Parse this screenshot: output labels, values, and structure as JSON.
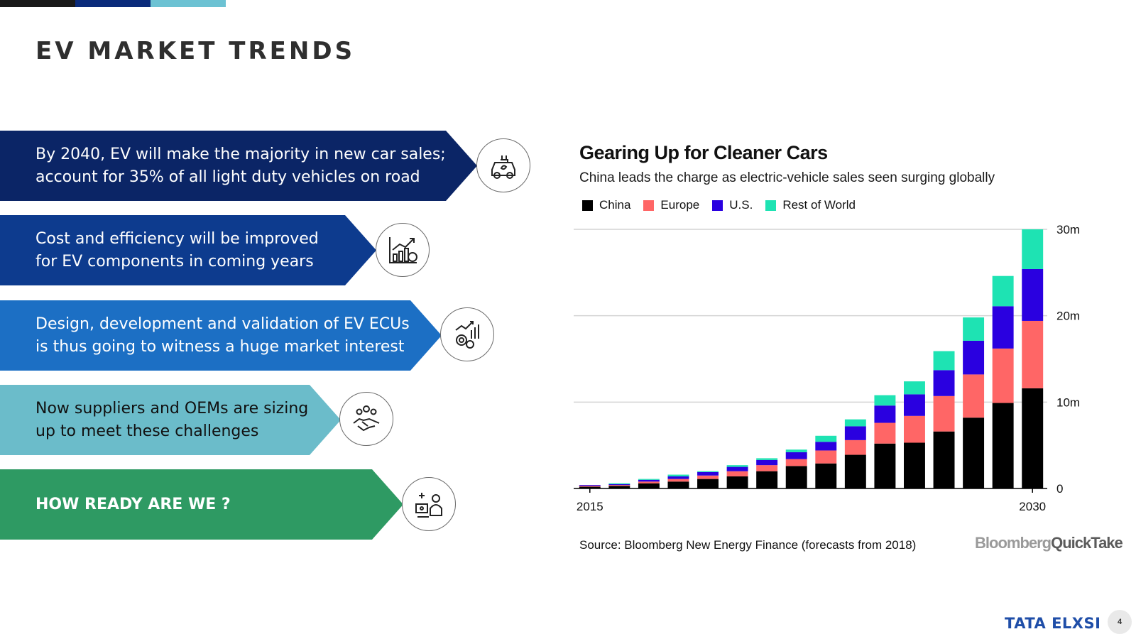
{
  "topbar": {
    "colors": [
      "#1a1a1a",
      "#0a2a7a",
      "#6cc2d3"
    ]
  },
  "slide": {
    "title": "EV MARKET TRENDS",
    "page_number": "4",
    "brand": "TATA ELXSI"
  },
  "banners": [
    {
      "text": "By 2040, EV will make the majority in new car sales;\naccount for 35% of all light duty vehicles on road",
      "color": "#0b2566",
      "icon": "ev-car-charging-icon"
    },
    {
      "text": "Cost and efficiency will be improved\nfor EV components in coming years",
      "color": "#0d3b8e",
      "icon": "cost-growth-chart-icon"
    },
    {
      "text": "Design, development and validation of EV ECUs\nis thus going to witness a huge market interest",
      "color": "#1c6fc4",
      "icon": "gear-growth-icon"
    },
    {
      "text": "Now suppliers and OEMs are sizing\nup to meet these challenges",
      "color": "#6bbcca",
      "icon": "partnership-handshake-icon"
    },
    {
      "text": "HOW READY ARE WE ?",
      "color": "#2e9a63",
      "icon": "engineer-workstation-icon"
    }
  ],
  "chart": {
    "title": "Gearing Up for Cleaner Cars",
    "subtitle": "China leads the charge as electric-vehicle sales seen surging globally",
    "source": "Source: Bloomberg New Energy Finance (forecasts from 2018)",
    "logo_part1": "Bloomberg",
    "logo_part2": "QuickTake"
  },
  "chart_data": {
    "type": "bar",
    "stacked": true,
    "categories": [
      "2015",
      "2016",
      "2017",
      "2018",
      "2019",
      "2020",
      "2021",
      "2022",
      "2023",
      "2024",
      "2025",
      "2026",
      "2027",
      "2028",
      "2029",
      "2030"
    ],
    "x_tick_labels": [
      "2015",
      "2030"
    ],
    "series": [
      {
        "name": "China",
        "color": "#000000",
        "values": [
          0.2,
          0.3,
          0.6,
          0.8,
          1.1,
          1.4,
          2.0,
          2.6,
          2.9,
          3.9,
          5.2,
          5.3,
          6.6,
          8.2,
          9.9,
          11.6
        ]
      },
      {
        "name": "Europe",
        "color": "#ff6666",
        "values": [
          0.1,
          0.1,
          0.2,
          0.3,
          0.4,
          0.6,
          0.7,
          0.8,
          1.5,
          1.7,
          2.4,
          3.1,
          4.1,
          5.0,
          6.3,
          7.8
        ]
      },
      {
        "name": "U.S.",
        "color": "#2a00e0",
        "values": [
          0.1,
          0.1,
          0.2,
          0.3,
          0.4,
          0.5,
          0.6,
          0.8,
          1.0,
          1.6,
          2.0,
          2.5,
          3.0,
          3.9,
          4.9,
          6.0
        ]
      },
      {
        "name": "Rest of World",
        "color": "#1ee3b3",
        "values": [
          0.0,
          0.1,
          0.1,
          0.2,
          0.1,
          0.2,
          0.2,
          0.3,
          0.7,
          0.8,
          1.2,
          1.5,
          2.2,
          2.7,
          3.5,
          4.6
        ]
      }
    ],
    "y_ticks": [
      0,
      10,
      20,
      30
    ],
    "y_tick_labels": [
      "0",
      "10m",
      "20m",
      "30m"
    ],
    "ylim": [
      0,
      30
    ],
    "grid": true,
    "legend_position": "top-left"
  }
}
